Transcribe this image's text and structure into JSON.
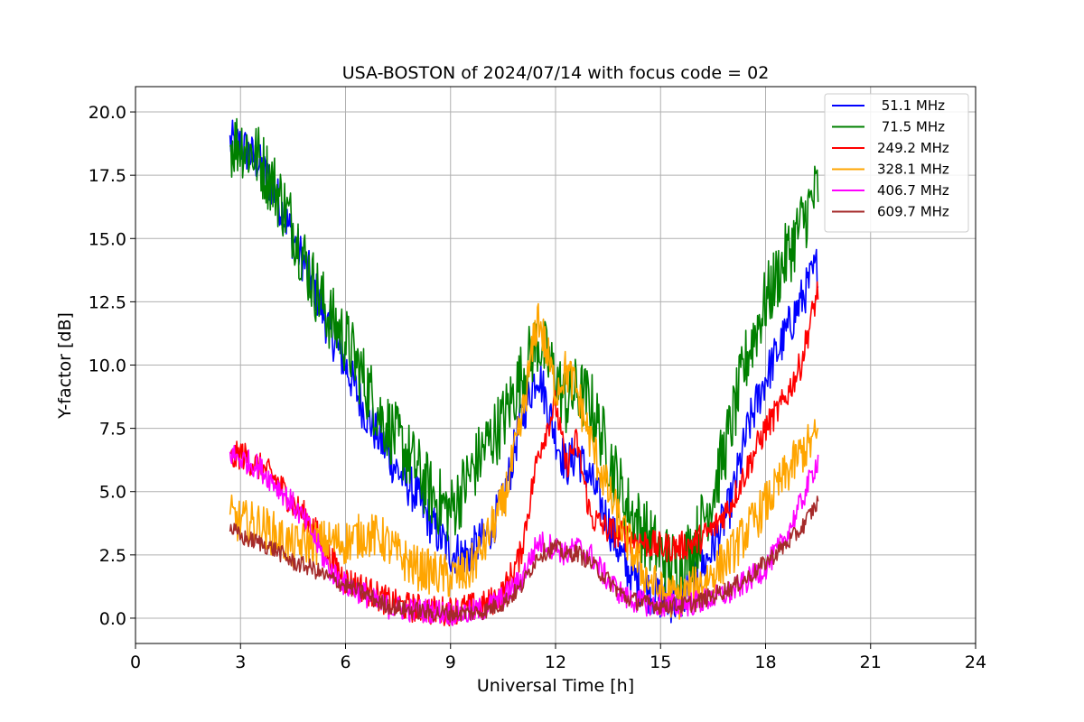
{
  "chart_data": {
    "type": "line",
    "title": "USA-BOSTON of 2024/07/14 with focus code = 02",
    "xlabel": "Universal Time [h]",
    "ylabel": "Y-factor [dB]",
    "xlim": [
      0,
      24
    ],
    "ylim": [
      -1,
      21
    ],
    "xticks": [
      0,
      3,
      6,
      9,
      12,
      15,
      18,
      21,
      24
    ],
    "xtick_labels": [
      "0",
      "3",
      "6",
      "9",
      "12",
      "15",
      "18",
      "21",
      "24"
    ],
    "yticks": [
      0,
      2.5,
      5,
      7.5,
      10,
      12.5,
      15,
      17.5,
      20
    ],
    "ytick_labels": [
      "0.0",
      "2.5",
      "5.0",
      "7.5",
      "10.0",
      "12.5",
      "15.0",
      "17.5",
      "20.0"
    ],
    "grid": true,
    "legend_position": "top-right",
    "series": [
      {
        "name": " 51.1 MHz",
        "color": "#0000ff",
        "noise": 0.9,
        "x": [
          2.7,
          3.0,
          3.5,
          4.0,
          4.5,
          5.0,
          5.5,
          6.0,
          6.5,
          7.0,
          7.5,
          8.0,
          8.5,
          9.0,
          9.5,
          10.0,
          10.5,
          11.0,
          11.5,
          12.0,
          12.3,
          12.6,
          13.0,
          13.5,
          14.0,
          14.5,
          15.0,
          15.5,
          16.0,
          16.5,
          17.0,
          17.5,
          18.0,
          18.5,
          19.0,
          19.5
        ],
        "y": [
          18.8,
          18.7,
          18.0,
          16.8,
          15.0,
          13.5,
          11.5,
          10.0,
          8.3,
          7.0,
          5.8,
          4.9,
          3.6,
          2.6,
          2.5,
          3.2,
          4.5,
          7.8,
          9.8,
          7.2,
          6.0,
          6.5,
          5.5,
          3.8,
          2.0,
          1.2,
          0.8,
          0.6,
          1.5,
          2.8,
          4.5,
          7.5,
          9.5,
          11.0,
          12.5,
          14.0
        ]
      },
      {
        "name": " 71.5 MHz",
        "color": "#008000",
        "noise": 1.4,
        "x": [
          2.7,
          3.0,
          3.5,
          4.0,
          4.5,
          5.0,
          5.5,
          6.0,
          6.5,
          7.0,
          7.5,
          8.0,
          8.5,
          9.0,
          9.5,
          10.0,
          10.5,
          11.0,
          11.5,
          12.0,
          12.3,
          12.6,
          13.0,
          13.5,
          14.0,
          14.5,
          15.0,
          15.5,
          16.0,
          16.5,
          17.0,
          17.5,
          18.0,
          18.5,
          19.0,
          19.5
        ],
        "y": [
          18.7,
          18.8,
          18.2,
          17.0,
          15.5,
          13.5,
          12.0,
          11.0,
          9.5,
          8.0,
          7.0,
          6.0,
          4.8,
          4.2,
          5.5,
          6.8,
          7.8,
          9.5,
          11.0,
          9.5,
          8.5,
          9.0,
          8.5,
          6.5,
          4.5,
          3.5,
          2.5,
          2.0,
          3.0,
          5.0,
          7.5,
          10.5,
          12.5,
          14.0,
          15.5,
          17.0
        ]
      },
      {
        "name": "249.2 MHz",
        "color": "#ff0000",
        "noise": 0.6,
        "x": [
          2.7,
          3.0,
          3.5,
          4.0,
          4.5,
          5.0,
          5.5,
          6.0,
          6.5,
          7.0,
          7.5,
          8.0,
          8.5,
          9.0,
          9.5,
          10.0,
          10.5,
          11.0,
          11.5,
          12.0,
          12.3,
          12.6,
          13.0,
          13.5,
          14.0,
          14.5,
          15.0,
          15.5,
          16.0,
          16.5,
          17.0,
          17.5,
          18.0,
          18.5,
          19.0,
          19.5
        ],
        "y": [
          6.2,
          6.5,
          6.0,
          5.5,
          4.5,
          3.8,
          2.5,
          1.5,
          1.2,
          0.8,
          0.5,
          0.4,
          0.3,
          0.3,
          0.4,
          0.5,
          1.0,
          2.5,
          6.5,
          8.5,
          6.0,
          7.0,
          4.0,
          3.5,
          3.2,
          3.0,
          2.8,
          2.8,
          3.0,
          3.5,
          4.5,
          6.0,
          7.5,
          8.5,
          10.0,
          13.0
        ]
      },
      {
        "name": "328.1 MHz",
        "color": "#ffa500",
        "noise": 0.9,
        "x": [
          2.7,
          3.0,
          3.5,
          4.0,
          4.5,
          5.0,
          5.5,
          6.0,
          6.5,
          7.0,
          7.5,
          8.0,
          8.5,
          9.0,
          9.5,
          10.0,
          10.5,
          11.0,
          11.5,
          12.0,
          12.3,
          12.6,
          13.0,
          13.5,
          14.0,
          14.5,
          15.0,
          15.5,
          16.0,
          16.5,
          17.0,
          17.5,
          18.0,
          18.5,
          19.0,
          19.5
        ],
        "y": [
          4.0,
          3.8,
          3.7,
          3.3,
          2.8,
          3.0,
          3.0,
          3.0,
          3.3,
          3.2,
          2.5,
          2.0,
          1.8,
          1.6,
          1.8,
          3.0,
          4.5,
          7.5,
          12.0,
          9.0,
          9.8,
          9.0,
          7.0,
          5.0,
          3.2,
          1.8,
          1.0,
          0.8,
          1.2,
          1.8,
          2.5,
          3.5,
          4.5,
          5.5,
          6.5,
          7.2
        ]
      },
      {
        "name": "406.7 MHz",
        "color": "#ff00ff",
        "noise": 0.5,
        "x": [
          2.7,
          3.0,
          3.5,
          4.0,
          4.5,
          5.0,
          5.5,
          6.0,
          6.5,
          7.0,
          7.5,
          8.0,
          8.5,
          9.0,
          9.5,
          10.0,
          10.5,
          11.0,
          11.5,
          12.0,
          12.3,
          12.6,
          13.0,
          13.5,
          14.0,
          14.5,
          15.0,
          15.5,
          16.0,
          16.5,
          17.0,
          17.5,
          18.0,
          18.5,
          19.0,
          19.5
        ],
        "y": [
          6.5,
          6.3,
          6.0,
          5.3,
          4.5,
          3.5,
          2.0,
          1.3,
          1.0,
          0.5,
          0.4,
          0.3,
          0.3,
          0.2,
          0.2,
          0.4,
          0.8,
          1.5,
          3.0,
          2.8,
          2.5,
          2.8,
          2.5,
          1.5,
          0.8,
          0.6,
          0.5,
          0.5,
          0.6,
          0.8,
          1.0,
          1.5,
          2.0,
          3.0,
          4.5,
          6.3
        ]
      },
      {
        "name": "609.7 MHz",
        "color": "#a52a2a",
        "noise": 0.35,
        "x": [
          2.7,
          3.0,
          3.5,
          4.0,
          4.5,
          5.0,
          5.5,
          6.0,
          6.5,
          7.0,
          7.5,
          8.0,
          8.5,
          9.0,
          9.5,
          10.0,
          10.5,
          11.0,
          11.5,
          12.0,
          12.3,
          12.6,
          13.0,
          13.5,
          14.0,
          14.5,
          15.0,
          15.5,
          16.0,
          16.5,
          17.0,
          17.5,
          18.0,
          18.5,
          19.0,
          19.5
        ],
        "y": [
          3.6,
          3.2,
          3.0,
          2.7,
          2.2,
          2.0,
          1.6,
          1.3,
          1.0,
          0.6,
          0.4,
          0.3,
          0.2,
          0.2,
          0.2,
          0.3,
          0.6,
          1.2,
          2.5,
          2.8,
          2.5,
          2.6,
          2.2,
          1.5,
          0.8,
          0.6,
          0.5,
          0.5,
          0.6,
          0.9,
          1.2,
          1.6,
          2.2,
          2.8,
          3.5,
          4.6
        ]
      }
    ]
  }
}
